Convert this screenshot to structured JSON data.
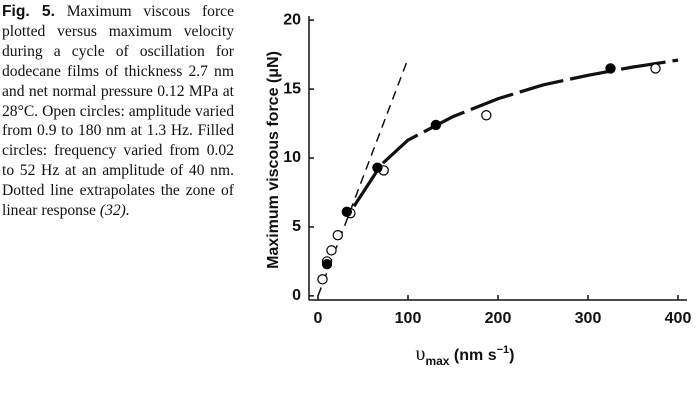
{
  "caption": {
    "label": "Fig. 5.",
    "body": "Maximum viscous force plotted versus maximum velocity during a cycle of oscillation for dodecane films of thickness 2.7 nm and net normal pressure 0.12 MPa at 28°C. Open circles: amplitude varied from 0.9 to 180 nm at 1.3 Hz. Filled circles: frequency varied from 0.02 to 52 Hz at an amplitude of 40 nm. Dotted line extrapolates the zone of linear response",
    "ref": "(32)."
  },
  "chart_data": {
    "type": "scatter",
    "ylabel": "Maximum viscous force (μN)",
    "xlabel": {
      "base": "υ",
      "sub": "max",
      "mid": " (nm s",
      "sup": "−1",
      "end": ")"
    },
    "xlim": [
      -10,
      410
    ],
    "ylim": [
      -0.3,
      20.3
    ],
    "xticks": [
      0,
      100,
      200,
      300,
      400
    ],
    "yticks": [
      0,
      5,
      10,
      15,
      20
    ],
    "series": [
      {
        "marker": "open",
        "color": "#000000",
        "x": [
          5,
          10,
          15,
          22,
          36,
          73,
          187,
          375
        ],
        "values": [
          1.2,
          2.5,
          3.3,
          4.4,
          6.0,
          9.1,
          13.1,
          16.5
        ]
      },
      {
        "marker": "filled",
        "color": "#000000",
        "x": [
          10,
          32,
          66,
          131,
          325
        ],
        "values": [
          2.3,
          6.1,
          9.3,
          12.4,
          16.5
        ]
      }
    ],
    "lines": [
      {
        "style": "fit",
        "x": [
          40,
          70,
          100,
          150,
          200,
          250,
          300,
          350,
          400
        ],
        "values": [
          6.5,
          9.5,
          11.3,
          13.0,
          14.3,
          15.3,
          16.0,
          16.6,
          17.1
        ]
      },
      {
        "style": "linear",
        "x": [
          0,
          100
        ],
        "values": [
          0,
          17.2
        ]
      }
    ]
  }
}
